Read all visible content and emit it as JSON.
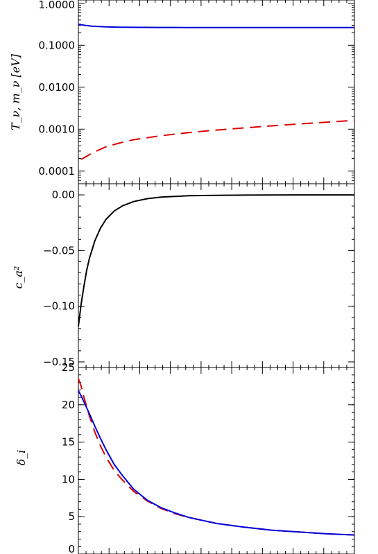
{
  "chart_data": [
    {
      "type": "line",
      "ylabel": "T_ν, m_ν [eV]",
      "yscale": "log",
      "ylim": [
        5e-05,
        1.2
      ],
      "xlim": [
        0,
        1
      ],
      "yticks": [
        {
          "value": 1.0,
          "label": "1.0000"
        },
        {
          "value": 0.1,
          "label": "0.1000"
        },
        {
          "value": 0.01,
          "label": "0.0100"
        },
        {
          "value": 0.001,
          "label": "0.0010"
        },
        {
          "value": 0.0001,
          "label": "0.0001"
        }
      ],
      "series": [
        {
          "color": "#0000dd",
          "dash": "solid",
          "x": [
            0,
            0.02,
            0.05,
            0.1,
            0.15,
            0.2,
            0.3,
            0.4,
            0.5,
            0.6,
            0.7,
            0.8,
            0.9,
            1.0
          ],
          "y": [
            0.32,
            0.3,
            0.285,
            0.275,
            0.27,
            0.268,
            0.266,
            0.265,
            0.265,
            0.264,
            0.264,
            0.264,
            0.264,
            0.264
          ]
        },
        {
          "color": "#dd0000",
          "dash": "dashed",
          "x": [
            0.01,
            0.05,
            0.1,
            0.15,
            0.2,
            0.3,
            0.4,
            0.5,
            0.6,
            0.7,
            0.8,
            0.9,
            1.0
          ],
          "y": [
            0.00019,
            0.00027,
            0.00038,
            0.00047,
            0.00056,
            0.0007,
            0.00083,
            0.00095,
            0.00107,
            0.0012,
            0.00133,
            0.00147,
            0.00162
          ]
        }
      ]
    },
    {
      "type": "line",
      "ylabel": "c_a²",
      "ylim": [
        -0.155,
        0.01
      ],
      "xlim": [
        0,
        1
      ],
      "yticks": [
        {
          "value": 0.0,
          "label": "0.00"
        },
        {
          "value": -0.05,
          "label": "−0.05"
        },
        {
          "value": -0.1,
          "label": "−0.10"
        },
        {
          "value": -0.15,
          "label": "−0.15"
        }
      ],
      "series": [
        {
          "color": "#000000",
          "dash": "solid",
          "x": [
            0,
            0.01,
            0.02,
            0.03,
            0.04,
            0.06,
            0.08,
            0.1,
            0.13,
            0.16,
            0.2,
            0.25,
            0.3,
            0.4,
            0.5,
            0.6,
            0.8,
            1.0
          ],
          "y": [
            -0.118,
            -0.098,
            -0.082,
            -0.068,
            -0.057,
            -0.041,
            -0.03,
            -0.022,
            -0.0145,
            -0.0098,
            -0.006,
            -0.0034,
            -0.002,
            -0.0008,
            -0.0004,
            -0.0002,
            -5e-05,
            0.0
          ]
        }
      ]
    },
    {
      "type": "line",
      "ylabel": "δ_i",
      "ylim": [
        0,
        25
      ],
      "xlim": [
        0,
        1
      ],
      "yticks": [
        {
          "value": 0,
          "label": "0"
        },
        {
          "value": 5,
          "label": "5"
        },
        {
          "value": 10,
          "label": "10"
        },
        {
          "value": 15,
          "label": "15"
        },
        {
          "value": 20,
          "label": "20"
        },
        {
          "value": 25,
          "label": "25"
        }
      ],
      "series": [
        {
          "color": "#dd0000",
          "dash": "dashed",
          "x": [
            0,
            0.01,
            0.02,
            0.04,
            0.06,
            0.08,
            0.1,
            0.13,
            0.16,
            0.2,
            0.25,
            0.3,
            0.35,
            0.4,
            0.5,
            0.6,
            0.7,
            0.8,
            0.9,
            1.0
          ],
          "y": [
            23.5,
            22.5,
            21.0,
            18.5,
            16.3,
            14.5,
            13.0,
            11.2,
            9.9,
            8.4,
            7.1,
            6.1,
            5.4,
            4.9,
            4.1,
            3.6,
            3.2,
            2.95,
            2.7,
            2.55
          ]
        },
        {
          "color": "#0000dd",
          "dash": "solid",
          "x": [
            0,
            0.01,
            0.02,
            0.04,
            0.06,
            0.08,
            0.1,
            0.13,
            0.16,
            0.2,
            0.25,
            0.3,
            0.35,
            0.4,
            0.5,
            0.6,
            0.7,
            0.8,
            0.9,
            1.0
          ],
          "y": [
            21.9,
            21.2,
            20.4,
            18.8,
            17.1,
            15.5,
            14.0,
            12.0,
            10.5,
            8.7,
            7.2,
            6.2,
            5.5,
            4.9,
            4.1,
            3.6,
            3.2,
            2.95,
            2.7,
            2.55
          ]
        }
      ]
    }
  ]
}
